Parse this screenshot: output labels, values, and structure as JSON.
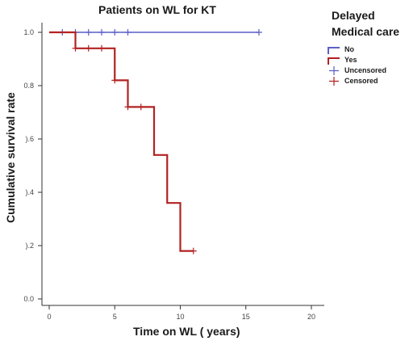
{
  "chart_data": {
    "type": "line",
    "title": "Patients on WL for KT",
    "xlabel": "Time on WL ( years)",
    "ylabel": "Cumulative survival rate",
    "xlim": [
      0,
      20
    ],
    "ylim": [
      0,
      1
    ],
    "x_ticks": [
      0,
      5,
      10,
      15,
      20
    ],
    "x_tick_labels": [
      "0",
      "5",
      "10",
      "15",
      "20"
    ],
    "y_ticks": [
      0,
      0.2,
      0.4,
      0.6,
      0.8,
      1.0
    ],
    "y_tick_labels": [
      "0.0",
      ").2",
      ").4",
      ").6",
      "0.8",
      "1.0"
    ],
    "grid": false,
    "legend_title": "Delayed Medical care",
    "legend_placement": "top-right",
    "legend_entries": [
      {
        "label": "No",
        "kind": "line",
        "color": "#5b5fc7"
      },
      {
        "label": "Yes",
        "kind": "line",
        "color": "#b22222"
      },
      {
        "label": "Uncensored",
        "kind": "cross",
        "color": "#5b5fc7"
      },
      {
        "label": "Censored",
        "kind": "cross",
        "color": "#b22222"
      }
    ],
    "series": [
      {
        "name": "No",
        "color": "#5b5fc7",
        "steps": [
          [
            0,
            1.0
          ],
          [
            16,
            1.0
          ]
        ],
        "censored_x": [
          1,
          2,
          3,
          4,
          5,
          6,
          16
        ]
      },
      {
        "name": "Yes",
        "color": "#b22222",
        "steps": [
          [
            0,
            1.0
          ],
          [
            2,
            0.94
          ],
          [
            5,
            0.82
          ],
          [
            6,
            0.72
          ],
          [
            8,
            0.54
          ],
          [
            9,
            0.36
          ],
          [
            10,
            0.18
          ],
          [
            11,
            0.18
          ]
        ],
        "censored": [
          [
            2,
            0.94
          ],
          [
            3,
            0.94
          ],
          [
            4,
            0.94
          ],
          [
            5,
            0.82
          ],
          [
            6,
            0.72
          ],
          [
            7,
            0.72
          ],
          [
            11,
            0.18
          ]
        ]
      }
    ]
  }
}
